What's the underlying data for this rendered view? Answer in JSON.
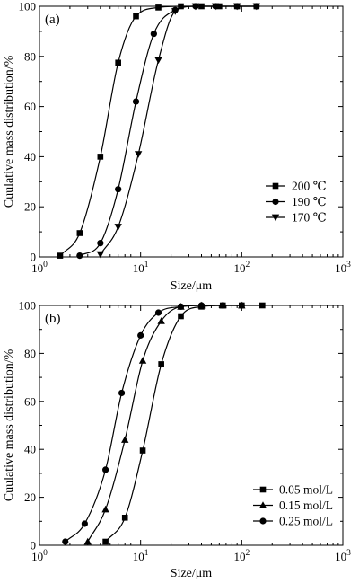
{
  "chart_data": [
    {
      "type": "line",
      "panel_label": "(a)",
      "xlabel": "Size/μm",
      "ylabel": "Cuulative mass distribution/%",
      "xscale": "log",
      "xlim": [
        1,
        1000
      ],
      "ylim": [
        0,
        100
      ],
      "yticks": [
        0,
        20,
        40,
        60,
        80,
        100
      ],
      "xticks": [
        {
          "base": "10",
          "exp": "0"
        },
        {
          "base": "10",
          "exp": "1"
        },
        {
          "base": "10",
          "exp": "2"
        },
        {
          "base": "10",
          "exp": "3"
        }
      ],
      "legend_position": "lower-right",
      "series": [
        {
          "name": "200 ℃",
          "marker": "square",
          "x": [
            1.6,
            2.5,
            4.0,
            6.0,
            9.0,
            15,
            25,
            40,
            60,
            90,
            140
          ],
          "y": [
            0.5,
            9.5,
            40,
            77.5,
            96,
            99.5,
            100,
            100,
            100,
            100,
            100
          ]
        },
        {
          "name": "190 ℃",
          "marker": "circle",
          "x": [
            2.5,
            4.0,
            6.0,
            9.0,
            13.5,
            22,
            35,
            55,
            90,
            140
          ],
          "y": [
            0.5,
            5.5,
            27,
            62,
            89,
            98.5,
            100,
            100,
            100,
            100
          ]
        },
        {
          "name": "170 ℃",
          "marker": "triangle-down",
          "x": [
            4.0,
            6.0,
            9.5,
            15,
            22,
            35,
            55,
            90,
            140
          ],
          "y": [
            1,
            12,
            41,
            78.5,
            98,
            100,
            100,
            100,
            100
          ]
        }
      ]
    },
    {
      "type": "line",
      "panel_label": "(b)",
      "xlabel": "Size/μm",
      "ylabel": "Cuulative mass distribution/%",
      "xscale": "log",
      "xlim": [
        1,
        1000
      ],
      "ylim": [
        0,
        100
      ],
      "yticks": [
        0,
        20,
        40,
        60,
        80,
        100
      ],
      "xticks": [
        {
          "base": "10",
          "exp": "0"
        },
        {
          "base": "10",
          "exp": "1"
        },
        {
          "base": "10",
          "exp": "2"
        },
        {
          "base": "10",
          "exp": "3"
        }
      ],
      "legend_position": "lower-right",
      "series": [
        {
          "name": "0.05 mol/L",
          "marker": "square",
          "x": [
            4.5,
            7.0,
            10.5,
            16,
            25,
            40,
            65,
            100,
            160
          ],
          "y": [
            1.5,
            11.5,
            39.5,
            75.5,
            95.5,
            99.5,
            100,
            100,
            100
          ]
        },
        {
          "name": "0.15 mol/L",
          "marker": "triangle-up",
          "x": [
            3.0,
            4.5,
            7.0,
            10.5,
            16,
            25,
            40,
            65,
            100
          ],
          "y": [
            1.5,
            15,
            44,
            77,
            93.5,
            99.5,
            100,
            100,
            100
          ]
        },
        {
          "name": "0.25 mol/L",
          "marker": "circle",
          "x": [
            1.8,
            2.8,
            4.5,
            6.5,
            10,
            15,
            25,
            40,
            65,
            100
          ],
          "y": [
            1.5,
            9,
            31.5,
            63.5,
            87.5,
            97,
            99.5,
            100,
            100,
            100
          ]
        }
      ]
    }
  ]
}
